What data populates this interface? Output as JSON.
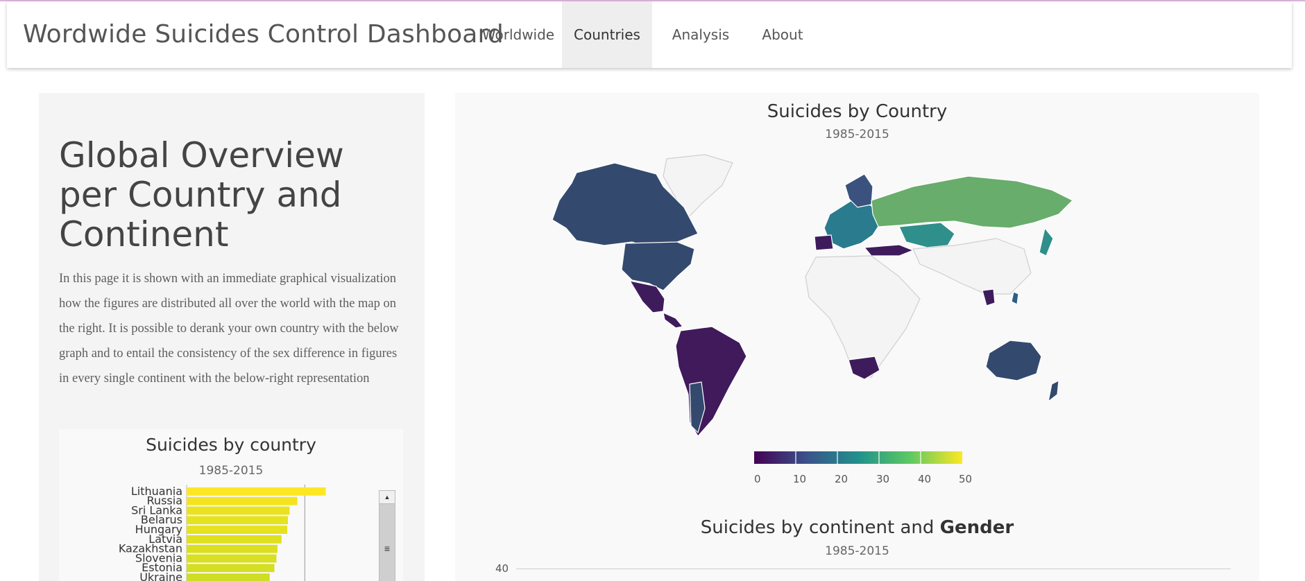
{
  "app": {
    "title": "Wordwide Suicides Control Dashboard"
  },
  "nav": {
    "items": [
      {
        "label": "Worldwide",
        "active": false
      },
      {
        "label": "Countries",
        "active": true
      },
      {
        "label": "Analysis",
        "active": false
      },
      {
        "label": "About",
        "active": false
      }
    ]
  },
  "left": {
    "heading": "Global Overview per Country and Continent",
    "description": "In this page it is shown with an immediate graphical visualization how the figures are distributed all over the world with the map on the right. It is possible to derank your own country with the below graph and to entail the consistency of the sex difference in figures in every single continent with the below-right representation"
  },
  "bar_card": {
    "title": "Suicides by country",
    "subtitle": "1985-2015"
  },
  "map_card": {
    "title": "Suicides by Country",
    "subtitle": "1985-2015",
    "colorscale": [
      "#440154",
      "#3b528b",
      "#21918c",
      "#5ec962",
      "#fde725"
    ],
    "legend_ticks": [
      "0",
      "10",
      "20",
      "30",
      "40",
      "50"
    ]
  },
  "continent_card": {
    "title_part1": "Suicides by continent and ",
    "title_part2": "Gender",
    "subtitle": "1985-2015",
    "y_tick": "40"
  },
  "chart_data": [
    {
      "type": "bar",
      "orientation": "horizontal",
      "title": "Suicides by country",
      "subtitle": "1985-2015",
      "categories": [
        "Lithuania",
        "Russia",
        "Sri Lanka",
        "Belarus",
        "Hungary",
        "Latvia",
        "Kazakhstan",
        "Slovenia",
        "Estonia",
        "Ukraine"
      ],
      "values": [
        41.2,
        32.8,
        30.5,
        30.0,
        29.8,
        28.1,
        26.9,
        26.6,
        26.0,
        24.6
      ],
      "xlim": [
        0,
        60
      ],
      "colors": [
        "#fde725",
        "#f4e420",
        "#eae21e",
        "#e5e21f",
        "#e5e21f",
        "#dfe01f",
        "#dbdf20",
        "#d9df21",
        "#d5de22",
        "#cfdd24"
      ]
    },
    {
      "type": "heatmap",
      "subtype": "choropleth",
      "title": "Suicides by Country",
      "subtitle": "1985-2015",
      "color_range": [
        0,
        50
      ],
      "ticks": [
        0,
        10,
        20,
        30,
        40,
        50
      ]
    }
  ]
}
